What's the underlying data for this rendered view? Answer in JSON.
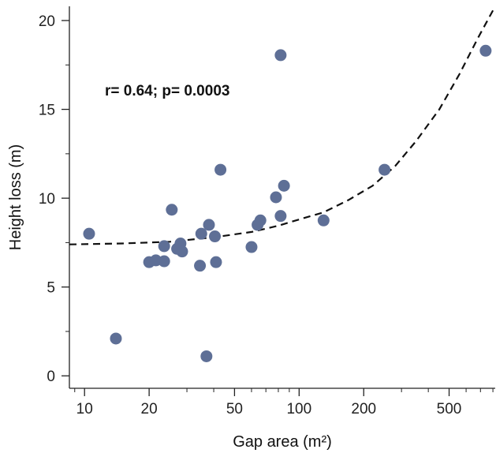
{
  "chart_data": {
    "type": "scatter",
    "xlabel": "Gap area (m²)",
    "ylabel": "Height loss (m)",
    "xscale": "log",
    "xlim": [
      8.5,
      820
    ],
    "ylim": [
      -0.7,
      20.8
    ],
    "xticks": [
      10,
      20,
      50,
      100,
      200,
      500
    ],
    "yticks": [
      0,
      5,
      10,
      15,
      20
    ],
    "grid": false,
    "legend": "none",
    "annotation": "r= 0.64; p= 0.0003",
    "colors": {
      "points": "#5e6f96",
      "fit": "#111111"
    },
    "points": [
      {
        "x": 10.5,
        "y": 8.0
      },
      {
        "x": 14.0,
        "y": 2.1
      },
      {
        "x": 20.0,
        "y": 6.4
      },
      {
        "x": 21.5,
        "y": 6.5
      },
      {
        "x": 23.5,
        "y": 6.45
      },
      {
        "x": 23.5,
        "y": 7.3
      },
      {
        "x": 25.5,
        "y": 9.35
      },
      {
        "x": 27.0,
        "y": 7.15
      },
      {
        "x": 28.0,
        "y": 7.45
      },
      {
        "x": 28.5,
        "y": 7.0
      },
      {
        "x": 34.5,
        "y": 6.2
      },
      {
        "x": 35.0,
        "y": 8.0
      },
      {
        "x": 37.0,
        "y": 1.1
      },
      {
        "x": 38.0,
        "y": 8.5
      },
      {
        "x": 40.5,
        "y": 7.85
      },
      {
        "x": 41.0,
        "y": 6.4
      },
      {
        "x": 43.0,
        "y": 11.6
      },
      {
        "x": 60.0,
        "y": 7.25
      },
      {
        "x": 64.0,
        "y": 8.5
      },
      {
        "x": 66.0,
        "y": 8.75
      },
      {
        "x": 78.0,
        "y": 10.05
      },
      {
        "x": 82.0,
        "y": 18.05
      },
      {
        "x": 82.0,
        "y": 9.0
      },
      {
        "x": 85.0,
        "y": 10.7
      },
      {
        "x": 130.0,
        "y": 8.75
      },
      {
        "x": 250.0,
        "y": 11.6
      },
      {
        "x": 740.0,
        "y": 18.3
      }
    ],
    "fit": {
      "style": "dashed",
      "x": [
        8.5,
        15,
        25,
        40,
        60,
        80,
        100,
        130,
        170,
        220,
        280,
        350,
        450,
        560,
        680,
        820
      ],
      "y": [
        7.4,
        7.45,
        7.55,
        7.8,
        8.1,
        8.45,
        8.8,
        9.2,
        9.9,
        10.7,
        11.8,
        13.2,
        15.0,
        17.0,
        19.0,
        20.8
      ]
    }
  }
}
